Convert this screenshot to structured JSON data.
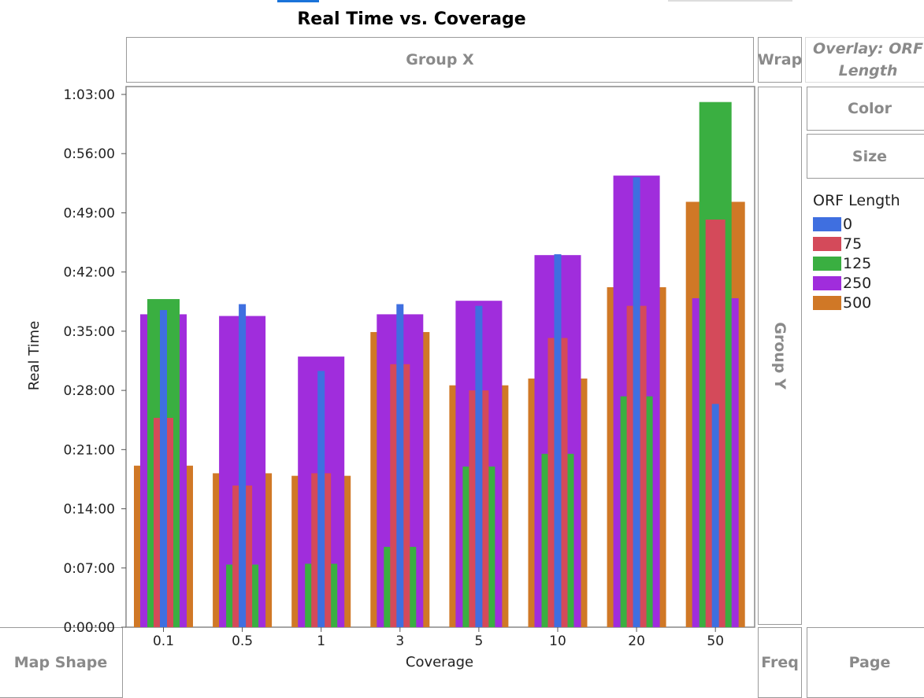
{
  "title": "Real Time vs. Coverage",
  "zones": {
    "group_x": "Group X",
    "wrap": "Wrap",
    "overlay": "Overlay: ORF Length",
    "color": "Color",
    "size": "Size",
    "group_y": "Group Y",
    "map_shape": "Map Shape",
    "freq": "Freq",
    "page": "Page"
  },
  "chart_data": {
    "type": "bar",
    "title": "Real Time vs. Coverage",
    "xlabel": "Coverage",
    "ylabel": "Real Time",
    "categories": [
      "0.1",
      "0.5",
      "1",
      "3",
      "5",
      "10",
      "20",
      "50"
    ],
    "ylim_minutes": [
      0,
      63
    ],
    "y_ticks": [
      "0:00:00",
      "0:07:00",
      "0:14:00",
      "0:21:00",
      "0:28:00",
      "0:35:00",
      "0:42:00",
      "0:49:00",
      "0:56:00",
      "1:03:00"
    ],
    "legend_title": "ORF Length",
    "legend_position": "right",
    "overlay": true,
    "series": [
      {
        "name": "500",
        "color": "#D07826",
        "values_minutes": [
          19.1,
          18.2,
          17.9,
          34.9,
          28.6,
          29.4,
          40.2,
          50.3
        ]
      },
      {
        "name": "250",
        "color": "#A02DDC",
        "values_minutes": [
          37.0,
          36.8,
          32.0,
          37.0,
          38.6,
          44.0,
          53.4,
          38.9
        ]
      },
      {
        "name": "125",
        "color": "#3AAF41",
        "values_minutes": [
          38.8,
          7.4,
          7.5,
          9.5,
          19.0,
          20.5,
          27.3,
          62.1
        ]
      },
      {
        "name": "75",
        "color": "#D44A5A",
        "values_minutes": [
          24.75,
          16.75,
          18.2,
          31.1,
          28.0,
          34.2,
          38.0,
          48.2
        ]
      },
      {
        "name": "0",
        "color": "#3F6FE0",
        "values_minutes": [
          37.5,
          38.2,
          30.3,
          38.2,
          38.0,
          44.1,
          53.2,
          26.4
        ]
      }
    ]
  }
}
